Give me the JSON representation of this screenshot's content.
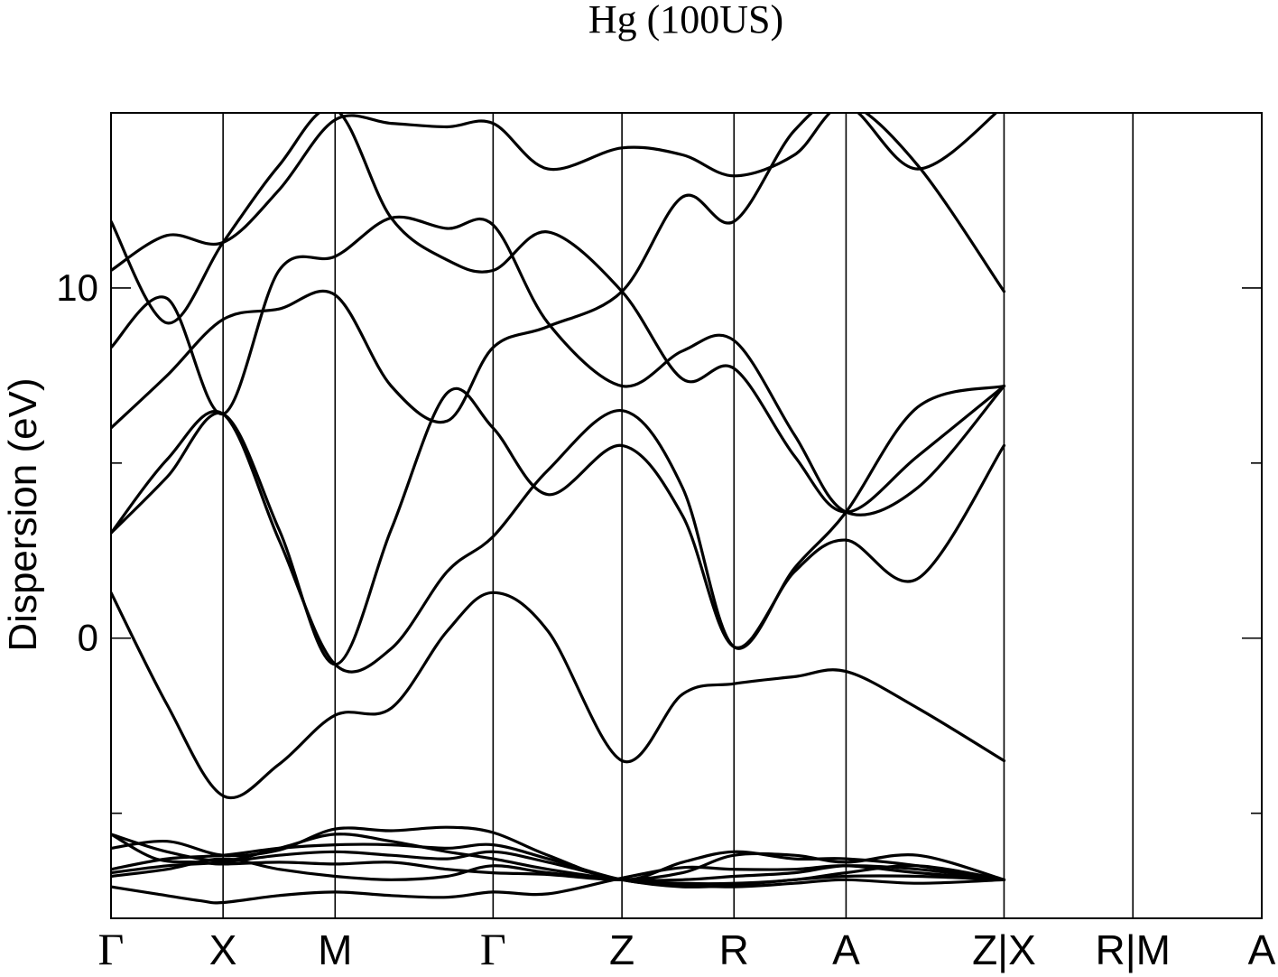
{
  "chart_data": {
    "type": "line",
    "title": "Hg (100US)",
    "xlabel": "",
    "ylabel": "Dispersion (eV)",
    "ylim": [
      -8,
      15
    ],
    "yticks": [
      0,
      10
    ],
    "y_minor_ticks": [
      -5,
      5
    ],
    "k_path": [
      {
        "label": "Γ",
        "x": 0.0
      },
      {
        "label": "X",
        "x": 1.0
      },
      {
        "label": "M",
        "x": 2.0
      },
      {
        "label": "Γ",
        "x": 3.41
      },
      {
        "label": "Z",
        "x": 4.56
      },
      {
        "label": "R",
        "x": 5.56
      },
      {
        "label": "A",
        "x": 6.56
      },
      {
        "label": "Z|X",
        "x": 7.97
      },
      {
        "label": "R|M",
        "x": 9.12
      },
      {
        "label": "A",
        "x": 10.27
      }
    ],
    "xlim": [
      0,
      10.27
    ],
    "grid": false,
    "legend": "none",
    "series": [
      {
        "values": [
          [
            0.0,
            -7.1
          ],
          [
            0.4,
            -7.3
          ],
          [
            0.8,
            -7.5
          ],
          [
            1.0,
            -7.55
          ],
          [
            1.5,
            -7.35
          ],
          [
            2.0,
            -7.25
          ],
          [
            2.5,
            -7.35
          ],
          [
            3.0,
            -7.4
          ],
          [
            3.41,
            -7.25
          ],
          [
            3.9,
            -7.3
          ],
          [
            4.56,
            -6.85
          ],
          [
            5.1,
            -6.55
          ],
          [
            5.56,
            -6.6
          ],
          [
            6.1,
            -6.6
          ],
          [
            6.56,
            -6.5
          ],
          [
            7.2,
            -6.7
          ],
          [
            7.97,
            -6.9
          ]
        ]
      },
      {
        "values": [
          [
            0.0,
            -5.6
          ],
          [
            0.4,
            -6.3
          ],
          [
            0.8,
            -6.4
          ],
          [
            1.0,
            -6.45
          ],
          [
            1.5,
            -6.4
          ],
          [
            2.0,
            -6.45
          ],
          [
            2.5,
            -6.4
          ],
          [
            3.0,
            -6.6
          ],
          [
            3.41,
            -6.7
          ],
          [
            3.9,
            -6.75
          ],
          [
            4.56,
            -6.9
          ],
          [
            5.1,
            -6.7
          ],
          [
            5.56,
            -6.2
          ],
          [
            6.1,
            -6.2
          ],
          [
            6.56,
            -6.4
          ],
          [
            7.2,
            -6.2
          ],
          [
            7.97,
            -6.9
          ]
        ]
      },
      {
        "values": [
          [
            0.0,
            -6.0
          ],
          [
            0.5,
            -5.8
          ],
          [
            1.0,
            -6.2
          ],
          [
            1.5,
            -6.05
          ],
          [
            2.0,
            -5.45
          ],
          [
            2.5,
            -5.5
          ],
          [
            3.0,
            -5.4
          ],
          [
            3.41,
            -5.55
          ],
          [
            3.9,
            -6.2
          ],
          [
            4.56,
            -6.9
          ],
          [
            5.1,
            -6.4
          ],
          [
            5.56,
            -6.1
          ],
          [
            6.1,
            -6.3
          ],
          [
            6.56,
            -6.3
          ],
          [
            7.2,
            -6.5
          ],
          [
            7.97,
            -6.9
          ]
        ]
      },
      {
        "values": [
          [
            0.0,
            -5.6
          ],
          [
            0.5,
            -6.1
          ],
          [
            1.0,
            -6.35
          ],
          [
            1.5,
            -6.0
          ],
          [
            2.0,
            -5.6
          ],
          [
            2.5,
            -5.8
          ],
          [
            3.0,
            -6.1
          ],
          [
            3.41,
            -6.3
          ],
          [
            3.9,
            -6.6
          ],
          [
            4.56,
            -6.9
          ],
          [
            5.1,
            -7.0
          ],
          [
            5.56,
            -7.0
          ],
          [
            6.1,
            -6.9
          ],
          [
            6.56,
            -6.7
          ],
          [
            7.2,
            -6.5
          ],
          [
            7.97,
            -6.9
          ]
        ]
      },
      {
        "values": [
          [
            0.0,
            -6.8
          ],
          [
            0.5,
            -6.6
          ],
          [
            1.0,
            -6.3
          ],
          [
            1.5,
            -6.6
          ],
          [
            2.0,
            -6.8
          ],
          [
            2.5,
            -6.9
          ],
          [
            3.0,
            -6.8
          ],
          [
            3.41,
            -6.5
          ],
          [
            3.9,
            -6.7
          ],
          [
            4.56,
            -6.9
          ],
          [
            5.1,
            -6.9
          ],
          [
            5.56,
            -6.8
          ],
          [
            6.1,
            -6.7
          ],
          [
            6.56,
            -6.5
          ],
          [
            7.2,
            -6.6
          ],
          [
            7.97,
            -6.9
          ]
        ]
      },
      {
        "values": [
          [
            0.0,
            -6.7
          ],
          [
            0.5,
            -6.5
          ],
          [
            1.0,
            -6.4
          ],
          [
            1.5,
            -6.2
          ],
          [
            2.0,
            -6.1
          ],
          [
            2.5,
            -6.2
          ],
          [
            3.0,
            -6.3
          ],
          [
            3.41,
            -6.1
          ],
          [
            3.9,
            -6.4
          ],
          [
            4.56,
            -6.9
          ],
          [
            5.1,
            -7.1
          ],
          [
            5.56,
            -7.05
          ],
          [
            6.1,
            -6.9
          ],
          [
            6.56,
            -6.8
          ],
          [
            7.2,
            -6.8
          ],
          [
            7.97,
            -6.9
          ]
        ]
      },
      {
        "values": [
          [
            0.0,
            -6.6
          ],
          [
            0.5,
            -6.3
          ],
          [
            1.0,
            -6.2
          ],
          [
            1.5,
            -6.0
          ],
          [
            2.0,
            -5.9
          ],
          [
            2.5,
            -5.9
          ],
          [
            3.0,
            -6.0
          ],
          [
            3.41,
            -5.9
          ],
          [
            3.9,
            -6.3
          ],
          [
            4.56,
            -6.9
          ],
          [
            5.1,
            -7.05
          ],
          [
            5.56,
            -7.1
          ],
          [
            6.1,
            -7.0
          ],
          [
            6.56,
            -6.9
          ],
          [
            7.2,
            -7.0
          ],
          [
            7.97,
            -6.9
          ]
        ]
      },
      {
        "values": [
          [
            0.0,
            1.3
          ],
          [
            0.5,
            -1.9
          ],
          [
            1.0,
            -4.5
          ],
          [
            1.5,
            -3.6
          ],
          [
            2.0,
            -2.2
          ],
          [
            2.5,
            -2.0
          ],
          [
            3.0,
            0.2
          ],
          [
            3.41,
            1.3
          ],
          [
            3.9,
            0.2
          ],
          [
            4.56,
            -3.5
          ],
          [
            5.1,
            -1.6
          ],
          [
            5.56,
            -1.3
          ],
          [
            6.1,
            -1.1
          ],
          [
            6.56,
            -0.95
          ],
          [
            7.2,
            -2.0
          ],
          [
            7.97,
            -3.5
          ]
        ]
      },
      {
        "values": [
          [
            0.0,
            3.0
          ],
          [
            0.5,
            5.1
          ],
          [
            1.0,
            6.4
          ],
          [
            1.5,
            2.8
          ],
          [
            2.0,
            -0.75
          ],
          [
            2.5,
            -0.3
          ],
          [
            3.0,
            1.9
          ],
          [
            3.41,
            2.9
          ],
          [
            3.9,
            4.8
          ],
          [
            4.56,
            6.5
          ],
          [
            5.1,
            4.3
          ],
          [
            5.56,
            -0.25
          ],
          [
            6.1,
            2.0
          ],
          [
            6.56,
            3.6
          ],
          [
            7.2,
            6.6
          ],
          [
            7.97,
            7.2
          ]
        ]
      },
      {
        "values": [
          [
            0.0,
            3.0
          ],
          [
            0.5,
            4.6
          ],
          [
            1.0,
            6.4
          ],
          [
            1.5,
            3.1
          ],
          [
            2.0,
            -0.75
          ],
          [
            2.5,
            3.1
          ],
          [
            3.0,
            7.0
          ],
          [
            3.41,
            6.0
          ],
          [
            3.9,
            4.1
          ],
          [
            4.56,
            5.5
          ],
          [
            5.1,
            3.5
          ],
          [
            5.56,
            -0.25
          ],
          [
            6.1,
            1.9
          ],
          [
            6.56,
            2.8
          ],
          [
            7.2,
            1.7
          ],
          [
            7.97,
            5.5
          ]
        ]
      },
      {
        "values": [
          [
            0.0,
            6.0
          ],
          [
            0.5,
            7.5
          ],
          [
            1.0,
            9.1
          ],
          [
            1.5,
            9.4
          ],
          [
            2.0,
            9.8
          ],
          [
            2.5,
            7.2
          ],
          [
            3.0,
            6.2
          ],
          [
            3.41,
            8.3
          ],
          [
            3.9,
            8.9
          ],
          [
            4.56,
            9.9
          ],
          [
            5.1,
            12.6
          ],
          [
            5.56,
            11.9
          ],
          [
            6.1,
            14.5
          ],
          [
            6.56,
            15.3
          ],
          [
            7.2,
            13.5
          ],
          [
            7.97,
            9.9
          ]
        ]
      },
      {
        "values": [
          [
            0.0,
            8.3
          ],
          [
            0.5,
            9.7
          ],
          [
            1.0,
            6.4
          ],
          [
            1.5,
            10.5
          ],
          [
            2.0,
            10.9
          ],
          [
            2.5,
            12.0
          ],
          [
            3.0,
            11.7
          ],
          [
            3.41,
            11.8
          ],
          [
            3.9,
            9.0
          ],
          [
            4.56,
            7.2
          ],
          [
            5.1,
            8.2
          ],
          [
            5.56,
            8.5
          ],
          [
            6.1,
            5.8
          ],
          [
            6.56,
            3.6
          ],
          [
            7.2,
            4.3
          ],
          [
            7.97,
            7.2
          ]
        ]
      },
      {
        "values": [
          [
            0.0,
            10.5
          ],
          [
            0.5,
            11.5
          ],
          [
            1.0,
            11.3
          ],
          [
            1.5,
            12.8
          ],
          [
            2.0,
            14.8
          ],
          [
            2.5,
            14.7
          ],
          [
            3.0,
            14.6
          ],
          [
            3.41,
            14.7
          ],
          [
            3.9,
            13.4
          ],
          [
            4.56,
            14.0
          ],
          [
            5.1,
            13.8
          ],
          [
            5.56,
            13.2
          ],
          [
            6.1,
            13.8
          ],
          [
            6.56,
            15.2
          ],
          [
            7.2,
            13.4
          ],
          [
            7.97,
            15.2
          ]
        ]
      },
      {
        "values": [
          [
            0.0,
            11.9
          ],
          [
            0.5,
            9.0
          ],
          [
            1.0,
            11.3
          ],
          [
            1.5,
            13.5
          ],
          [
            2.0,
            15.1
          ],
          [
            2.5,
            12.0
          ],
          [
            3.0,
            10.8
          ],
          [
            3.41,
            10.5
          ],
          [
            3.9,
            11.6
          ],
          [
            4.56,
            9.9
          ],
          [
            5.1,
            7.4
          ],
          [
            5.56,
            7.7
          ],
          [
            6.1,
            5.2
          ],
          [
            6.56,
            3.6
          ],
          [
            7.2,
            5.2
          ],
          [
            7.97,
            7.2
          ]
        ]
      }
    ]
  }
}
